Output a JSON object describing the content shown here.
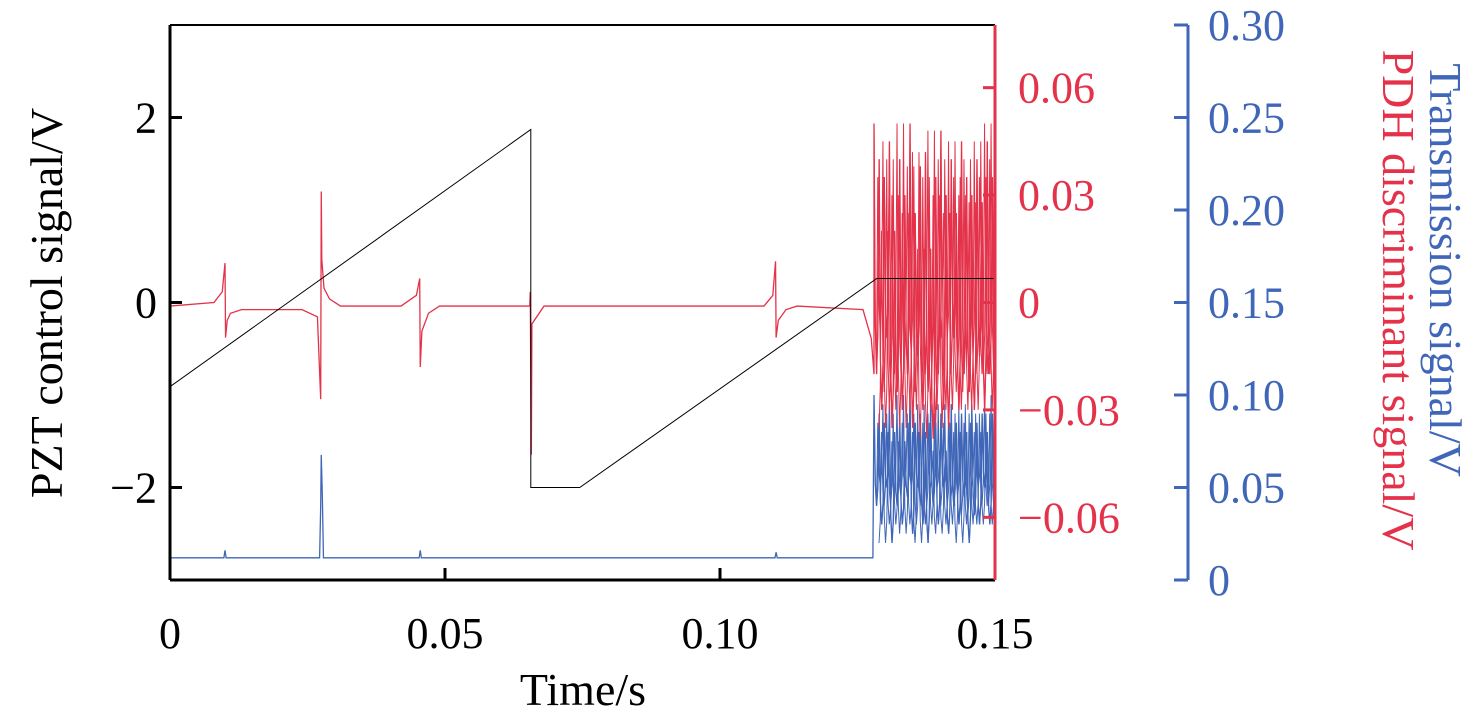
{
  "chart_data": {
    "type": "line",
    "xlabel": "Time/s",
    "xlim": [
      0,
      0.15
    ],
    "xticks": [
      0,
      0.05,
      0.1,
      0.15
    ],
    "xtick_labels": [
      "0",
      "0.05",
      "0.10",
      "0.15"
    ],
    "axes": {
      "left": {
        "label": "PZT control signal/V",
        "ylim": [
          -3,
          3
        ],
        "ticks": [
          -2,
          0,
          2
        ],
        "tick_labels": [
          "−2",
          "0",
          "2"
        ],
        "color": "#000000"
      },
      "right1": {
        "label": "PDH discriminant signal/V",
        "ylim": [
          -0.0775,
          0.0775
        ],
        "ticks": [
          -0.06,
          -0.03,
          0,
          0.03,
          0.06
        ],
        "tick_labels": [
          "−0.06",
          "−0.03",
          "0",
          "0.03",
          "0.06"
        ],
        "color": "#E3324A"
      },
      "right2": {
        "label": "Transmission signal/V",
        "ylim": [
          0,
          0.3
        ],
        "ticks": [
          0,
          0.05,
          0.1,
          0.15,
          0.2,
          0.25,
          0.3
        ],
        "tick_labels": [
          "0",
          "0.05",
          "0.10",
          "0.15",
          "0.20",
          "0.25",
          "0.30"
        ],
        "color": "#3F66B8"
      }
    },
    "series": [
      {
        "name": "PZT control signal",
        "axis": "left",
        "color": "#000000",
        "x": [
          0,
          0.0656,
          0.0656,
          0.0745,
          0.1285,
          0.15
        ],
        "y": [
          -0.91,
          1.87,
          -2.0,
          -2.0,
          0.26,
          0.26
        ]
      },
      {
        "name": "PDH discriminant signal",
        "axis": "right1",
        "color": "#E3324A",
        "x": [
          0,
          0.008,
          0.0095,
          0.01,
          0.0101,
          0.0104,
          0.011,
          0.013,
          0.024,
          0.0268,
          0.0274,
          0.0275,
          0.0276,
          0.028,
          0.029,
          0.031,
          0.042,
          0.0448,
          0.0454,
          0.0455,
          0.0458,
          0.047,
          0.049,
          0.0654,
          0.0655,
          0.0657,
          0.0658,
          0.068,
          0.108,
          0.1096,
          0.1101,
          0.1102,
          0.1106,
          0.112,
          0.114,
          0.126,
          0.1275,
          0.128
        ],
        "y": [
          -0.001,
          0.0,
          0.003,
          0.011,
          -0.0098,
          -0.005,
          -0.003,
          -0.002,
          -0.002,
          -0.004,
          -0.027,
          0.031,
          0.012,
          0.004,
          0.001,
          -0.001,
          -0.001,
          0.002,
          0.0067,
          -0.018,
          -0.008,
          -0.003,
          -0.001,
          -0.001,
          0.003,
          -0.0425,
          -0.006,
          -0.001,
          -0.001,
          0.002,
          0.0115,
          -0.0098,
          -0.005,
          -0.002,
          -0.001,
          -0.002,
          -0.01,
          -0.02
        ],
        "noise_start": 0.128,
        "noise": [
          0.05,
          -0.02,
          0.04,
          -0.03,
          0.035,
          -0.01,
          0.045,
          -0.035,
          0.02,
          -0.025,
          0.04,
          -0.03,
          0.03,
          -0.02,
          0.05,
          -0.035,
          0.025,
          -0.015,
          0.038,
          -0.03,
          0.042,
          -0.025,
          0.015,
          -0.038,
          0.035,
          -0.02,
          0.048,
          -0.03,
          0.03,
          -0.035,
          0.04,
          -0.01,
          0.025,
          -0.03,
          0.045,
          -0.02,
          0.035,
          -0.025,
          0.03,
          -0.03,
          0.04,
          -0.015,
          0.028,
          -0.03,
          0.045,
          -0.02,
          0.035,
          -0.02
        ]
      },
      {
        "name": "Transmission signal",
        "axis": "right2",
        "color": "#3F66B8",
        "x": [
          0,
          0.0098,
          0.01,
          0.0102,
          0.0272,
          0.0274,
          0.0275,
          0.0277,
          0.0279,
          0.0453,
          0.0455,
          0.0457,
          0.11,
          0.1102,
          0.1104,
          0.1278
        ],
        "y": [
          0.012,
          0.012,
          0.016,
          0.012,
          0.012,
          0.04,
          0.0676,
          0.045,
          0.012,
          0.012,
          0.016,
          0.012,
          0.012,
          0.015,
          0.012,
          0.012
        ],
        "noise_start": 0.128,
        "noise": [
          0.1,
          0.04,
          0.09,
          0.03,
          0.085,
          0.05,
          0.095,
          0.02,
          0.08,
          0.04,
          0.09,
          0.03,
          0.075,
          0.045,
          0.1,
          0.025,
          0.085,
          0.05,
          0.09,
          0.03,
          0.08,
          0.02,
          0.095,
          0.04,
          0.085,
          0.03,
          0.09,
          0.05,
          0.07,
          0.025,
          0.095,
          0.04,
          0.085,
          0.03,
          0.09,
          0.045,
          0.08,
          0.02,
          0.095,
          0.035,
          0.085,
          0.03,
          0.09,
          0.05,
          0.08,
          0.03,
          0.09,
          0.04
        ]
      }
    ]
  }
}
